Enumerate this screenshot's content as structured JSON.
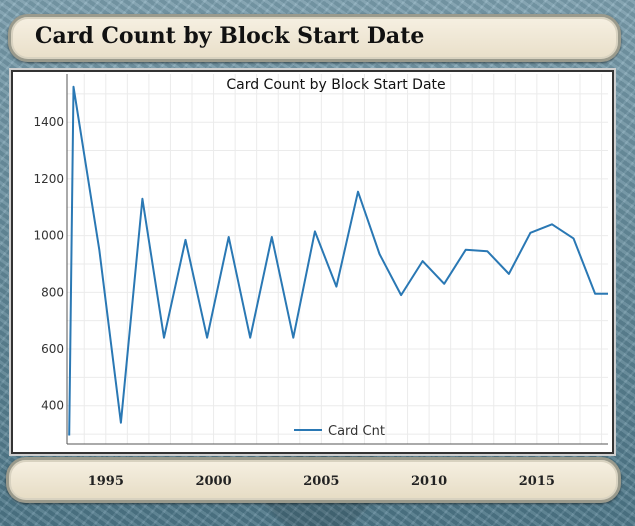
{
  "window_title": "Card Count by Block Start Date",
  "chart_data": {
    "type": "line",
    "title": "Card Count by Block Start Date",
    "xlabel": "",
    "ylabel": "",
    "x_tick_labels": [
      "1995",
      "2000",
      "2005",
      "2010",
      "2015"
    ],
    "y_ticks": [
      400,
      600,
      800,
      1000,
      1200,
      1400
    ],
    "xlim": [
      1993.2,
      2018.3
    ],
    "ylim": [
      265,
      1570
    ],
    "grid": true,
    "legend_position": "bottom-center",
    "series": [
      {
        "name": "Card Cnt",
        "color": "#2a78b4",
        "x": [
          1993.3,
          1993.5,
          1994.7,
          1995.7,
          1996.7,
          1997.7,
          1998.7,
          1999.7,
          2000.7,
          2001.7,
          2002.7,
          2003.7,
          2004.7,
          2005.7,
          2006.7,
          2007.7,
          2008.7,
          2009.7,
          2010.7,
          2011.7,
          2012.7,
          2013.7,
          2014.7,
          2015.7,
          2016.7,
          2017.7,
          2018.3
        ],
        "y": [
          295,
          1525,
          950,
          340,
          1130,
          640,
          985,
          640,
          995,
          640,
          995,
          640,
          1015,
          820,
          1155,
          935,
          790,
          910,
          830,
          950,
          945,
          865,
          1010,
          1040,
          990,
          795,
          795
        ]
      }
    ]
  }
}
